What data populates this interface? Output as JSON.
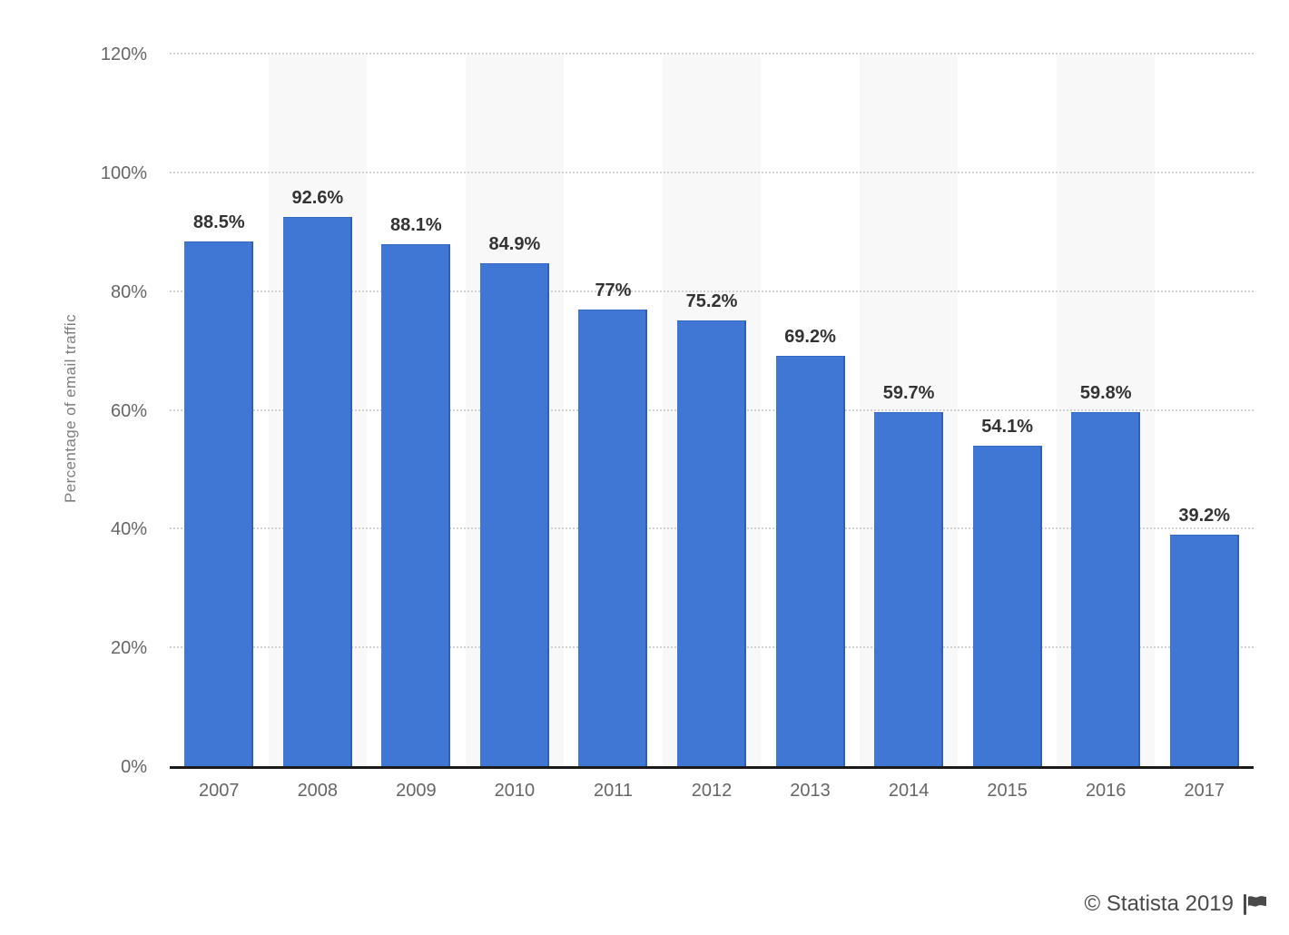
{
  "chart_data": {
    "type": "bar",
    "categories": [
      "2007",
      "2008",
      "2009",
      "2010",
      "2011",
      "2012",
      "2013",
      "2014",
      "2015",
      "2016",
      "2017"
    ],
    "values": [
      88.5,
      92.6,
      88.1,
      84.9,
      77,
      75.2,
      69.2,
      59.7,
      54.1,
      59.8,
      39.2
    ],
    "value_labels": [
      "88.5%",
      "92.6%",
      "88.1%",
      "84.9%",
      "77%",
      "75.2%",
      "69.2%",
      "59.7%",
      "54.1%",
      "59.8%",
      "39.2%"
    ],
    "title": "",
    "xlabel": "",
    "ylabel": "Percentage of email traffic",
    "ylim": [
      0,
      120
    ],
    "ytick_step": 20,
    "ytick_labels": [
      "0%",
      "20%",
      "40%",
      "60%",
      "80%",
      "100%",
      "120%"
    ],
    "grid": "horizontal-dotted",
    "legend": "none",
    "bar_color": "#4076d4",
    "stripe_color": "#f8f8f9",
    "striped_columns": "every second column starting with 2008"
  },
  "footer": {
    "credit": "© Statista 2019",
    "flag_icon": "flag-icon"
  }
}
